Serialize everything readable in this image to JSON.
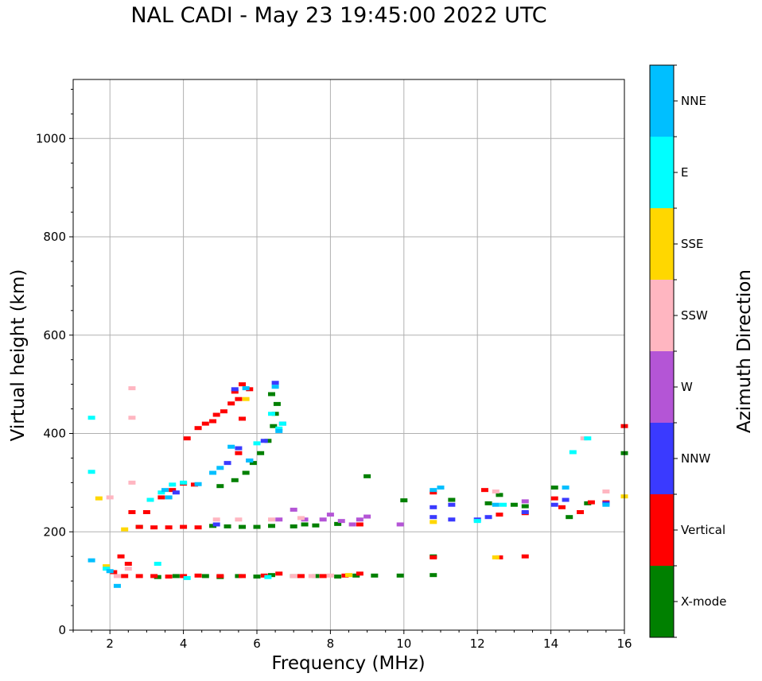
{
  "chart_data": {
    "type": "scatter",
    "title": "NAL CADI - May 23 19:45:00 2022 UTC",
    "xlabel": "Frequency (MHz)",
    "ylabel": "Virtual height (km)",
    "xlim": [
      1,
      16
    ],
    "ylim": [
      0,
      1120
    ],
    "xticks": [
      2,
      4,
      6,
      8,
      10,
      12,
      14,
      16
    ],
    "yticks": [
      0,
      200,
      400,
      600,
      800,
      1000
    ],
    "grid": true,
    "colorbar": {
      "label": "Azimuth Direction",
      "categories": [
        {
          "name": "X-mode",
          "color": "#008000"
        },
        {
          "name": "Vertical",
          "color": "#ff0000"
        },
        {
          "name": "NNW",
          "color": "#3a3aff"
        },
        {
          "name": "W",
          "color": "#b455d6"
        },
        {
          "name": "SSW",
          "color": "#ffb6c1"
        },
        {
          "name": "SSE",
          "color": "#ffd700"
        },
        {
          "name": "E",
          "color": "#00ffff"
        },
        {
          "name": "NNE",
          "color": "#00bfff"
        }
      ]
    },
    "series": [
      {
        "name": "X-mode",
        "points": [
          [
            3.3,
            108
          ],
          [
            3.8,
            110
          ],
          [
            4.6,
            110
          ],
          [
            5.0,
            108
          ],
          [
            5.5,
            110
          ],
          [
            6.0,
            109
          ],
          [
            6.4,
            112
          ],
          [
            7.0,
            110
          ],
          [
            7.6,
            110
          ],
          [
            8.2,
            109
          ],
          [
            8.7,
            111
          ],
          [
            9.2,
            111
          ],
          [
            9.9,
            111
          ],
          [
            4.8,
            212
          ],
          [
            5.2,
            211
          ],
          [
            5.6,
            210
          ],
          [
            6.0,
            210
          ],
          [
            6.4,
            212
          ],
          [
            7.0,
            211
          ],
          [
            7.6,
            213
          ],
          [
            8.2,
            216
          ],
          [
            5.0,
            293
          ],
          [
            5.4,
            305
          ],
          [
            5.7,
            320
          ],
          [
            5.9,
            340
          ],
          [
            6.1,
            360
          ],
          [
            6.3,
            385
          ],
          [
            6.45,
            415
          ],
          [
            6.5,
            440
          ],
          [
            6.55,
            460
          ],
          [
            6.4,
            480
          ],
          [
            9.0,
            313
          ],
          [
            10.0,
            264
          ],
          [
            10.8,
            150
          ],
          [
            10.8,
            112
          ],
          [
            11.3,
            265
          ],
          [
            12.3,
            258
          ],
          [
            12.6,
            275
          ],
          [
            13.0,
            255
          ],
          [
            13.3,
            252
          ],
          [
            14.1,
            290
          ],
          [
            14.5,
            230
          ],
          [
            15.0,
            258
          ],
          [
            16.0,
            360
          ],
          [
            2.8,
            210
          ],
          [
            7.3,
            215
          ]
        ]
      },
      {
        "name": "Vertical",
        "points": [
          [
            2.4,
            110
          ],
          [
            2.8,
            110
          ],
          [
            3.2,
            110
          ],
          [
            3.6,
            109
          ],
          [
            4.0,
            110
          ],
          [
            4.4,
            111
          ],
          [
            5.0,
            110
          ],
          [
            5.6,
            110
          ],
          [
            6.2,
            111
          ],
          [
            6.6,
            115
          ],
          [
            7.2,
            110
          ],
          [
            7.8,
            110
          ],
          [
            8.4,
            111
          ],
          [
            8.8,
            115
          ],
          [
            2.8,
            210
          ],
          [
            3.2,
            209
          ],
          [
            3.6,
            209
          ],
          [
            4.0,
            210
          ],
          [
            4.4,
            209
          ],
          [
            3.0,
            240
          ],
          [
            3.4,
            270
          ],
          [
            3.7,
            285
          ],
          [
            4.0,
            298
          ],
          [
            4.3,
            296
          ],
          [
            4.4,
            411
          ],
          [
            4.6,
            420
          ],
          [
            4.8,
            425
          ],
          [
            4.9,
            438
          ],
          [
            5.1,
            445
          ],
          [
            5.3,
            461
          ],
          [
            5.5,
            470
          ],
          [
            5.8,
            490
          ],
          [
            5.4,
            485
          ],
          [
            5.6,
            500
          ],
          [
            5.6,
            430
          ],
          [
            4.1,
            390
          ],
          [
            2.3,
            150
          ],
          [
            2.5,
            135
          ],
          [
            2.1,
            118
          ],
          [
            10.8,
            280
          ],
          [
            10.8,
            148
          ],
          [
            12.2,
            285
          ],
          [
            12.6,
            235
          ],
          [
            12.6,
            148
          ],
          [
            13.3,
            150
          ],
          [
            13.3,
            238
          ],
          [
            14.1,
            268
          ],
          [
            14.3,
            250
          ],
          [
            14.8,
            240
          ],
          [
            15.1,
            260
          ],
          [
            15.5,
            260
          ],
          [
            16.0,
            415
          ],
          [
            8.8,
            215
          ],
          [
            2.6,
            240
          ],
          [
            5.5,
            360
          ]
        ]
      },
      {
        "name": "NNW",
        "points": [
          [
            5.2,
            340
          ],
          [
            5.5,
            370
          ],
          [
            5.8,
            345
          ],
          [
            6.2,
            385
          ],
          [
            6.5,
            503
          ],
          [
            6.7,
            420
          ],
          [
            5.4,
            490
          ],
          [
            10.8,
            230
          ],
          [
            10.8,
            250
          ],
          [
            11.3,
            225
          ],
          [
            11.3,
            255
          ],
          [
            12.0,
            225
          ],
          [
            12.3,
            230
          ],
          [
            13.3,
            240
          ],
          [
            14.1,
            255
          ],
          [
            14.4,
            265
          ],
          [
            15.5,
            258
          ],
          [
            3.8,
            280
          ],
          [
            4.9,
            215
          ]
        ]
      },
      {
        "name": "W",
        "points": [
          [
            7.0,
            245
          ],
          [
            7.3,
            225
          ],
          [
            7.8,
            225
          ],
          [
            8.0,
            235
          ],
          [
            8.3,
            222
          ],
          [
            8.6,
            215
          ],
          [
            8.8,
            225
          ],
          [
            9.0,
            231
          ],
          [
            9.9,
            215
          ],
          [
            6.6,
            225
          ],
          [
            13.3,
            262
          ]
        ]
      },
      {
        "name": "SSW",
        "points": [
          [
            2.2,
            110
          ],
          [
            2.5,
            125
          ],
          [
            2.6,
            492
          ],
          [
            2.6,
            432
          ],
          [
            2.6,
            300
          ],
          [
            2.0,
            270
          ],
          [
            7.0,
            110
          ],
          [
            7.5,
            110
          ],
          [
            8.0,
            111
          ],
          [
            4.9,
            225
          ],
          [
            5.5,
            225
          ],
          [
            6.4,
            225
          ],
          [
            7.2,
            228
          ],
          [
            12.5,
            282
          ],
          [
            14.9,
            390
          ],
          [
            15.5,
            282
          ]
        ]
      },
      {
        "name": "SSE",
        "points": [
          [
            1.7,
            268
          ],
          [
            2.4,
            205
          ],
          [
            1.9,
            130
          ],
          [
            5.7,
            470
          ],
          [
            10.8,
            220
          ],
          [
            16.0,
            272
          ],
          [
            12.5,
            148
          ],
          [
            8.5,
            112
          ]
        ]
      },
      {
        "name": "E",
        "points": [
          [
            1.5,
            432
          ],
          [
            1.5,
            322
          ],
          [
            1.9,
            125
          ],
          [
            3.1,
            265
          ],
          [
            3.4,
            280
          ],
          [
            3.7,
            296
          ],
          [
            4.0,
            300
          ],
          [
            3.3,
            135
          ],
          [
            6.6,
            410
          ],
          [
            6.4,
            440
          ],
          [
            6.7,
            420
          ],
          [
            6.0,
            380
          ],
          [
            12.7,
            255
          ],
          [
            14.6,
            362
          ],
          [
            15.0,
            390
          ],
          [
            12.0,
            222
          ],
          [
            6.3,
            108
          ],
          [
            4.1,
            106
          ]
        ]
      },
      {
        "name": "NNE",
        "points": [
          [
            1.5,
            142
          ],
          [
            2.0,
            120
          ],
          [
            2.2,
            90
          ],
          [
            3.5,
            285
          ],
          [
            3.6,
            270
          ],
          [
            4.8,
            320
          ],
          [
            5.0,
            330
          ],
          [
            5.3,
            373
          ],
          [
            5.7,
            492
          ],
          [
            5.8,
            345
          ],
          [
            6.5,
            495
          ],
          [
            6.6,
            405
          ],
          [
            10.8,
            285
          ],
          [
            11.0,
            290
          ],
          [
            12.5,
            255
          ],
          [
            14.4,
            290
          ],
          [
            15.5,
            255
          ],
          [
            4.4,
            297
          ]
        ]
      }
    ]
  }
}
